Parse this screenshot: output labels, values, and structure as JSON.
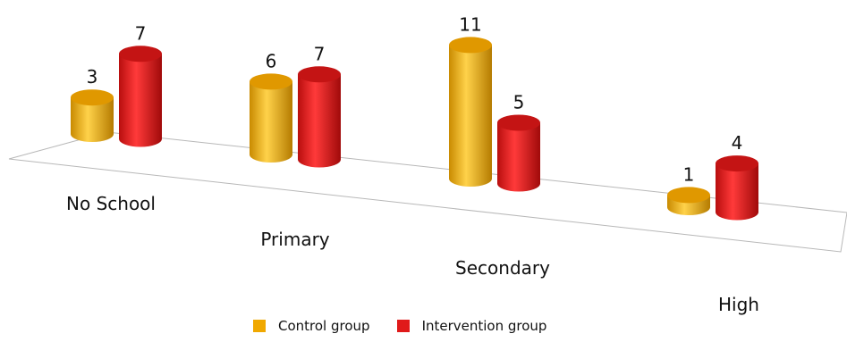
{
  "chart_data": {
    "type": "bar",
    "categories": [
      "No School",
      "Primary",
      "Secondary",
      "High"
    ],
    "series": [
      {
        "name": "Control group",
        "values": [
          3,
          6,
          11,
          1
        ],
        "color": "#f0a800"
      },
      {
        "name": "Intervention group",
        "values": [
          7,
          7,
          5,
          4
        ],
        "color": "#e01a1a"
      }
    ],
    "grid": false,
    "legend_position": "bottom"
  }
}
